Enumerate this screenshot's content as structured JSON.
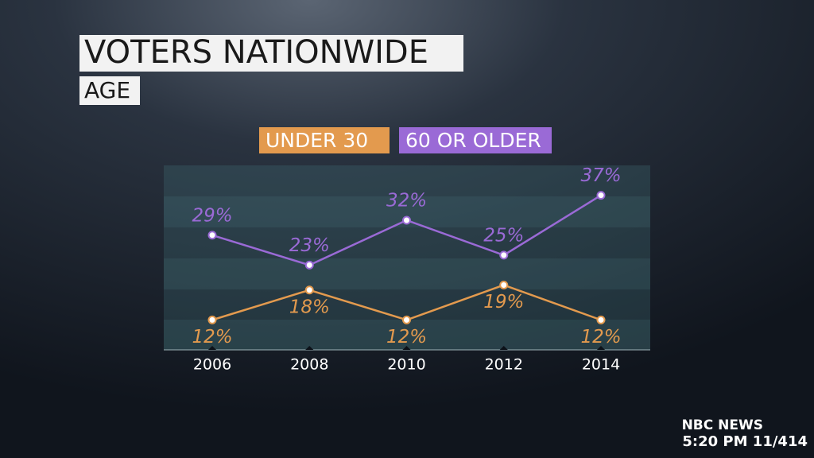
{
  "chart_data": {
    "type": "line",
    "title": "VOTERS NATIONWIDE",
    "subtitle": "AGE",
    "categories": [
      "2006",
      "2008",
      "2010",
      "2012",
      "2014"
    ],
    "series": [
      {
        "name": "UNDER 30",
        "color": "#e39a4e",
        "values": [
          12,
          18,
          12,
          19,
          12
        ],
        "value_labels": [
          "12%",
          "18%",
          "12%",
          "19%",
          "12%"
        ]
      },
      {
        "name": "60 OR OLDER",
        "color": "#9a6ad6",
        "values": [
          29,
          23,
          32,
          25,
          37
        ],
        "value_labels": [
          "29%",
          "23%",
          "32%",
          "25%",
          "37%"
        ]
      }
    ],
    "ylim": [
      6,
      43
    ],
    "footer": {
      "network": "NBC NEWS",
      "timestamp": "5:20 PM 11/414"
    }
  }
}
